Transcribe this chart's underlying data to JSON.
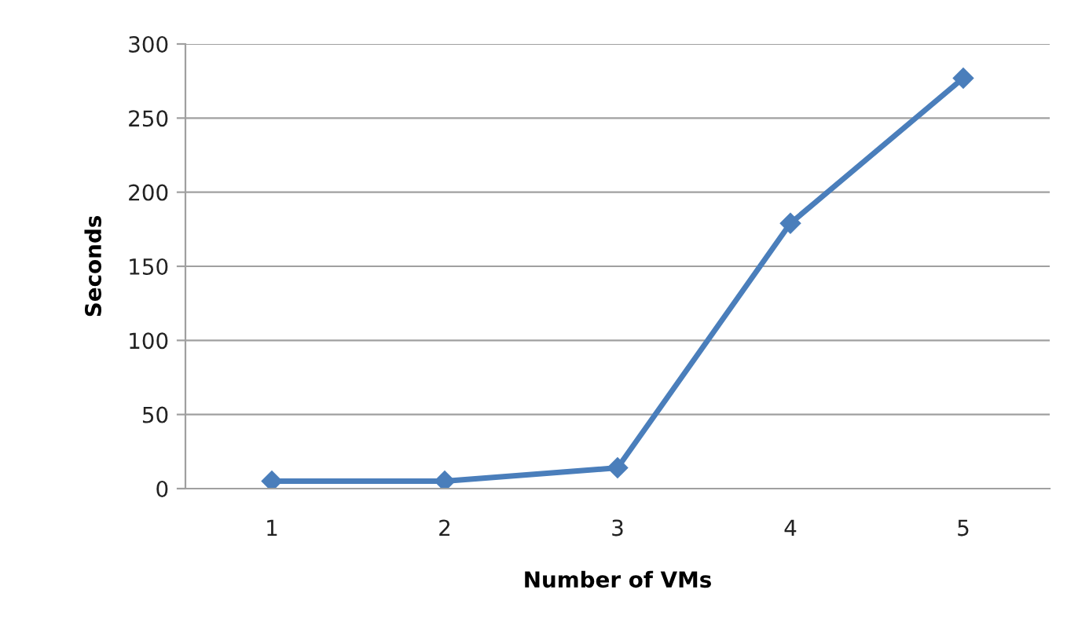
{
  "chart_data": {
    "type": "line",
    "xlabel": "Number of VMs",
    "ylabel": "Seconds",
    "categories": [
      "1",
      "2",
      "3",
      "4",
      "5"
    ],
    "series": [
      {
        "color": "#4a7ebb",
        "values": [
          5,
          5,
          14,
          179,
          277
        ]
      }
    ],
    "ylim": [
      0,
      300
    ],
    "yticks": [
      0,
      50,
      100,
      150,
      200,
      250,
      300
    ],
    "grid": "y",
    "marker": "diamond",
    "line_style": "solid",
    "legend": false
  }
}
